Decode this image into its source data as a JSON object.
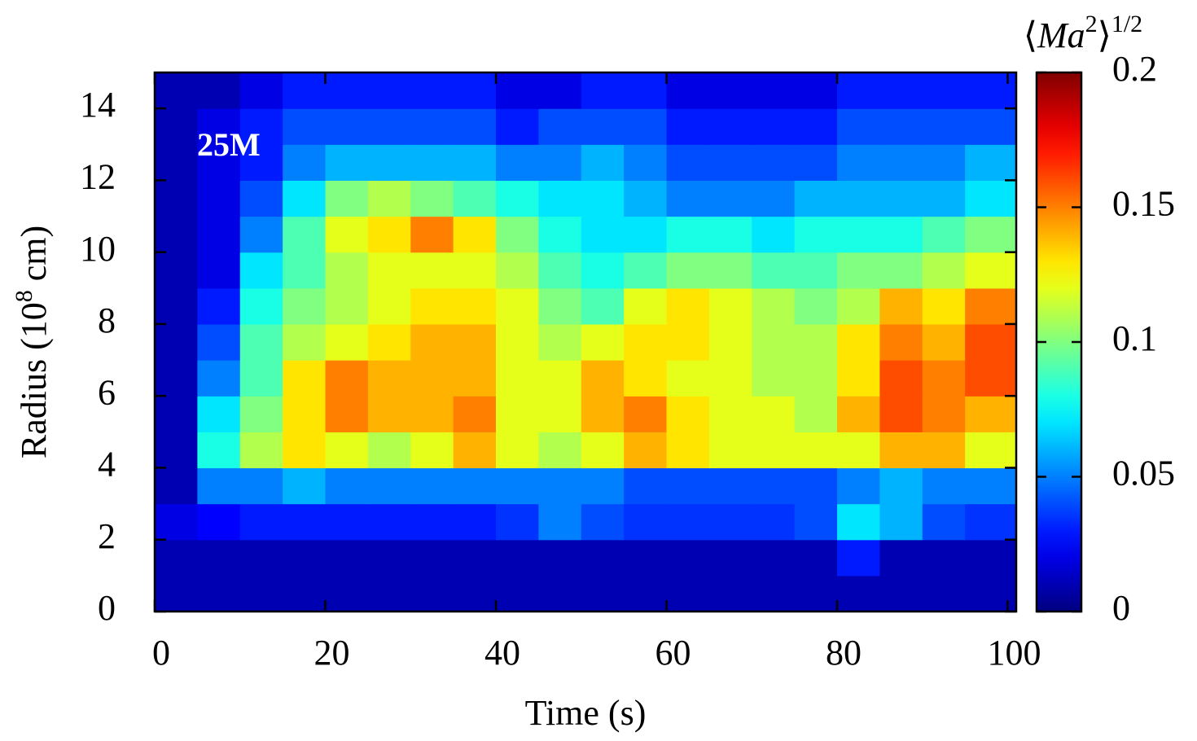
{
  "chart_data": {
    "type": "heatmap",
    "annotation": "25M",
    "xlabel": "Time (s)",
    "ylabel": [
      "Radius (10",
      "8",
      " cm)"
    ],
    "colorbar_label": [
      "⟨",
      "Ma",
      "2",
      "⟩",
      "1/2"
    ],
    "colormap": "jet",
    "xlim": [
      0,
      101
    ],
    "xticks": [
      0,
      20,
      40,
      60,
      80,
      100
    ],
    "ylim": [
      0,
      15
    ],
    "yticks": [
      0,
      2,
      4,
      6,
      8,
      10,
      12,
      14
    ],
    "clim": [
      0,
      0.2
    ],
    "cticks": [
      0,
      0.05,
      0.1,
      0.15,
      0.2
    ],
    "xbins": [
      0,
      5,
      10,
      15,
      20,
      25,
      30,
      35,
      40,
      45,
      50,
      55,
      60,
      65,
      70,
      75,
      80,
      85,
      90,
      95,
      101
    ],
    "ybins": [
      0,
      1,
      2,
      3,
      4,
      5,
      6,
      7,
      8,
      9,
      10,
      11,
      12,
      13,
      14,
      15
    ],
    "z": [
      [
        0.01,
        0.01,
        0.01,
        0.01,
        0.01,
        0.01,
        0.01,
        0.01,
        0.01,
        0.01,
        0.01,
        0.01,
        0.01,
        0.01,
        0.01,
        0.01,
        0.01,
        0.01,
        0.01,
        0.01
      ],
      [
        0.01,
        0.01,
        0.01,
        0.01,
        0.01,
        0.01,
        0.01,
        0.01,
        0.01,
        0.01,
        0.01,
        0.01,
        0.01,
        0.01,
        0.01,
        0.01,
        0.03,
        0.01,
        0.01,
        0.01
      ],
      [
        0.02,
        0.025,
        0.03,
        0.03,
        0.03,
        0.03,
        0.03,
        0.03,
        0.035,
        0.05,
        0.04,
        0.035,
        0.035,
        0.035,
        0.035,
        0.04,
        0.07,
        0.06,
        0.04,
        0.035
      ],
      [
        0.01,
        0.05,
        0.05,
        0.06,
        0.05,
        0.05,
        0.05,
        0.05,
        0.05,
        0.05,
        0.05,
        0.04,
        0.04,
        0.04,
        0.04,
        0.04,
        0.05,
        0.06,
        0.05,
        0.05
      ],
      [
        0.01,
        0.08,
        0.11,
        0.13,
        0.12,
        0.11,
        0.12,
        0.14,
        0.12,
        0.11,
        0.12,
        0.14,
        0.13,
        0.12,
        0.12,
        0.12,
        0.12,
        0.14,
        0.14,
        0.12
      ],
      [
        0.01,
        0.07,
        0.1,
        0.13,
        0.15,
        0.14,
        0.14,
        0.15,
        0.12,
        0.12,
        0.14,
        0.15,
        0.13,
        0.12,
        0.12,
        0.11,
        0.14,
        0.16,
        0.15,
        0.14
      ],
      [
        0.01,
        0.05,
        0.09,
        0.13,
        0.15,
        0.14,
        0.14,
        0.14,
        0.12,
        0.12,
        0.14,
        0.13,
        0.12,
        0.12,
        0.11,
        0.11,
        0.13,
        0.16,
        0.15,
        0.16
      ],
      [
        0.01,
        0.04,
        0.09,
        0.11,
        0.12,
        0.13,
        0.14,
        0.14,
        0.12,
        0.11,
        0.12,
        0.13,
        0.13,
        0.12,
        0.11,
        0.11,
        0.13,
        0.15,
        0.14,
        0.16
      ],
      [
        0.01,
        0.03,
        0.08,
        0.1,
        0.11,
        0.12,
        0.13,
        0.13,
        0.12,
        0.1,
        0.09,
        0.12,
        0.13,
        0.12,
        0.11,
        0.1,
        0.11,
        0.14,
        0.13,
        0.15
      ],
      [
        0.01,
        0.02,
        0.07,
        0.09,
        0.11,
        0.12,
        0.12,
        0.12,
        0.11,
        0.09,
        0.08,
        0.09,
        0.1,
        0.1,
        0.09,
        0.09,
        0.1,
        0.1,
        0.11,
        0.12
      ],
      [
        0.01,
        0.02,
        0.05,
        0.09,
        0.12,
        0.13,
        0.15,
        0.13,
        0.1,
        0.08,
        0.07,
        0.07,
        0.08,
        0.08,
        0.07,
        0.08,
        0.08,
        0.08,
        0.09,
        0.1
      ],
      [
        0.01,
        0.02,
        0.04,
        0.07,
        0.1,
        0.11,
        0.1,
        0.09,
        0.08,
        0.07,
        0.07,
        0.06,
        0.05,
        0.05,
        0.05,
        0.06,
        0.06,
        0.06,
        0.06,
        0.07
      ],
      [
        0.01,
        0.02,
        0.03,
        0.05,
        0.06,
        0.06,
        0.06,
        0.06,
        0.05,
        0.05,
        0.06,
        0.05,
        0.04,
        0.04,
        0.04,
        0.04,
        0.05,
        0.05,
        0.05,
        0.06
      ],
      [
        0.01,
        0.02,
        0.03,
        0.04,
        0.04,
        0.04,
        0.04,
        0.04,
        0.03,
        0.04,
        0.04,
        0.04,
        0.03,
        0.03,
        0.03,
        0.03,
        0.04,
        0.04,
        0.04,
        0.04
      ],
      [
        0.01,
        0.01,
        0.02,
        0.03,
        0.03,
        0.03,
        0.03,
        0.03,
        0.02,
        0.02,
        0.03,
        0.03,
        0.02,
        0.02,
        0.02,
        0.02,
        0.03,
        0.03,
        0.03,
        0.03
      ]
    ]
  }
}
